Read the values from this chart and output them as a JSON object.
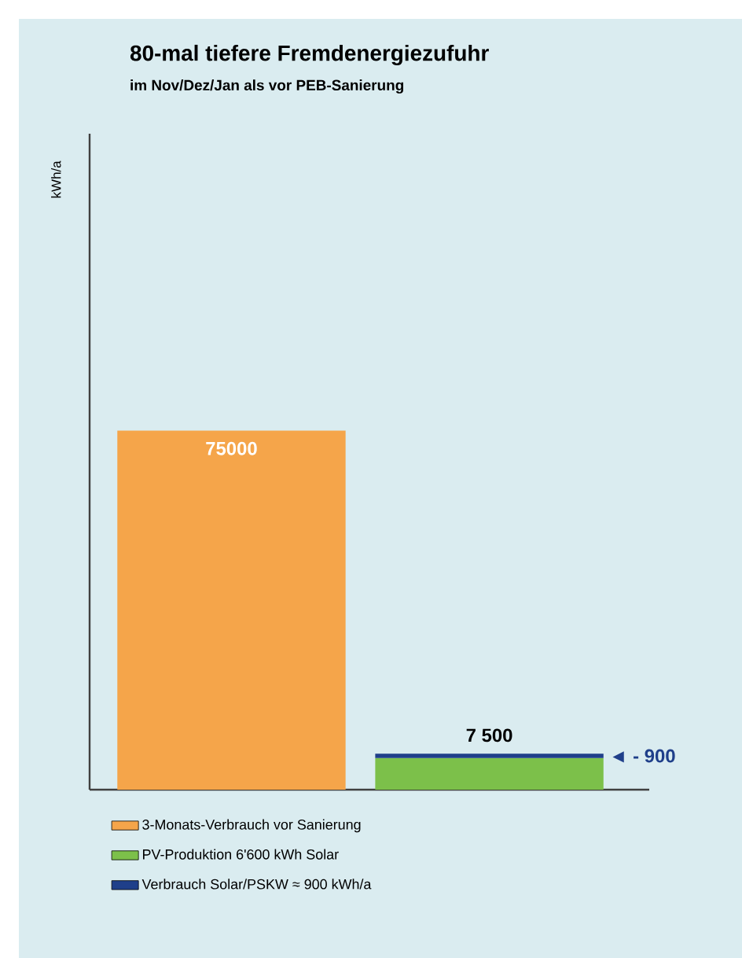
{
  "chart_data": {
    "type": "bar",
    "title": "80-mal tiefere Fremdenergiezufuhr",
    "subtitle": "im Nov/Dez/Jan als vor PEB-Sanierung",
    "ylabel": "kWh/a",
    "categories": [
      null,
      null
    ],
    "stacked": true,
    "ylim": [
      0,
      137000
    ],
    "legend": "bottom",
    "series": [
      {
        "name": "3-Monats-Verbrauch vor Sanierung",
        "color": "#f5a54a",
        "values": [
          75000,
          null
        ],
        "value_labels": [
          "75000",
          null
        ]
      },
      {
        "name": "PV-Produktion 6'600 kWh Solar",
        "color": "#7cc04a",
        "values": [
          null,
          6600
        ]
      },
      {
        "name": "Verbrauch Solar/PSKW ≈ 900 kWh/a",
        "color": "#1f3f8a",
        "values": [
          null,
          900
        ]
      }
    ],
    "totals": [
      null,
      "7 500"
    ],
    "annotations": [
      "◄ - 900"
    ]
  }
}
